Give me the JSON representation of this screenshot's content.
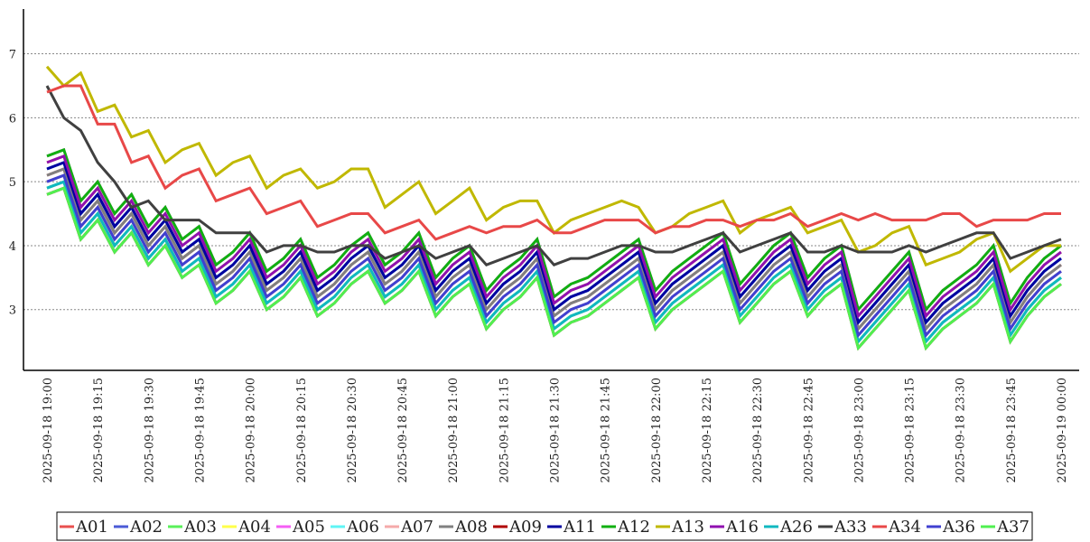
{
  "chart_data": {
    "type": "line",
    "categories": [
      "2025-09-18 19:00",
      null,
      null,
      "2025-09-18 19:15",
      null,
      null,
      "2025-09-18 19:30",
      null,
      null,
      "2025-09-18 19:45",
      null,
      null,
      "2025-09-18 20:00",
      null,
      null,
      "2025-09-18 20:15",
      null,
      null,
      "2025-09-18 20:30",
      null,
      null,
      "2025-09-18 20:45",
      null,
      null,
      "2025-09-18 21:00",
      null,
      null,
      "2025-09-18 21:15",
      null,
      null,
      "2025-09-18 21:30",
      null,
      null,
      "2025-09-18 21:45",
      null,
      null,
      "2025-09-18 22:00",
      null,
      null,
      "2025-09-18 22:15",
      null,
      null,
      "2025-09-18 22:30",
      null,
      null,
      "2025-09-18 22:45",
      null,
      null,
      "2025-09-18 23:00",
      null,
      null,
      "2025-09-18 23:15",
      null,
      null,
      "2025-09-18 23:30",
      null,
      null,
      "2025-09-18 23:45",
      null,
      null,
      "2025-09-19 00:00"
    ],
    "ylim": [
      2.05,
      7.7
    ],
    "yticks": [
      3,
      4,
      5,
      6,
      7
    ],
    "grid": true,
    "series": [
      {
        "name": "A01",
        "color": "#e8504f",
        "values": [
          5.1,
          5.2,
          4.4,
          4.7,
          4.2,
          4.5,
          4.0,
          4.3,
          3.8,
          4.0,
          3.4,
          3.6,
          3.9,
          3.3,
          3.5,
          3.8,
          3.2,
          3.4,
          3.7,
          3.9,
          3.4,
          3.6,
          3.9,
          3.2,
          3.5,
          3.7,
          3.0,
          3.3,
          3.5,
          3.8,
          2.9,
          3.1,
          3.2,
          3.4,
          3.6,
          3.8,
          3.0,
          3.3,
          3.5,
          3.7,
          3.9,
          3.1,
          3.4,
          3.7,
          3.9,
          3.2,
          3.5,
          3.7,
          2.7,
          3.0,
          3.3,
          3.6,
          2.7,
          3.0,
          3.2,
          3.4,
          3.7,
          2.8,
          3.2,
          3.5,
          3.7
        ]
      },
      {
        "name": "A02",
        "color": "#4b5bd6",
        "values": [
          5.2,
          5.3,
          4.5,
          4.8,
          4.3,
          4.6,
          4.1,
          4.4,
          3.9,
          4.1,
          3.5,
          3.7,
          4.0,
          3.4,
          3.6,
          3.9,
          3.3,
          3.5,
          3.8,
          4.0,
          3.5,
          3.7,
          4.0,
          3.3,
          3.6,
          3.8,
          3.1,
          3.4,
          3.6,
          3.9,
          3.0,
          3.2,
          3.3,
          3.5,
          3.7,
          3.9,
          3.1,
          3.4,
          3.6,
          3.8,
          4.0,
          3.2,
          3.5,
          3.8,
          4.0,
          3.3,
          3.6,
          3.8,
          2.8,
          3.1,
          3.4,
          3.7,
          2.8,
          3.1,
          3.3,
          3.5,
          3.8,
          2.9,
          3.3,
          3.6,
          3.8
        ]
      },
      {
        "name": "A03",
        "color": "#5af05a",
        "values": [
          4.9,
          5.0,
          4.2,
          4.5,
          4.0,
          4.3,
          3.8,
          4.1,
          3.6,
          3.8,
          3.2,
          3.4,
          3.7,
          3.1,
          3.3,
          3.6,
          3.0,
          3.2,
          3.5,
          3.7,
          3.2,
          3.4,
          3.7,
          3.0,
          3.3,
          3.5,
          2.8,
          3.1,
          3.3,
          3.6,
          2.7,
          2.9,
          3.0,
          3.2,
          3.4,
          3.6,
          2.8,
          3.1,
          3.3,
          3.5,
          3.7,
          2.9,
          3.2,
          3.5,
          3.7,
          3.0,
          3.3,
          3.5,
          2.5,
          2.8,
          3.1,
          3.4,
          2.5,
          2.8,
          3.0,
          3.2,
          3.5,
          2.6,
          3.0,
          3.3,
          3.5
        ]
      },
      {
        "name": "A04",
        "color": "#ffff4a",
        "values": [
          5.3,
          5.4,
          4.6,
          4.9,
          4.4,
          4.7,
          4.2,
          4.5,
          4.0,
          4.2,
          3.6,
          3.8,
          4.1,
          3.5,
          3.7,
          4.0,
          3.4,
          3.6,
          3.9,
          4.1,
          3.6,
          3.8,
          4.1,
          3.4,
          3.7,
          3.9,
          3.2,
          3.5,
          3.7,
          4.0,
          3.1,
          3.3,
          3.4,
          3.6,
          3.8,
          4.0,
          3.2,
          3.5,
          3.7,
          3.9,
          4.1,
          3.3,
          3.6,
          3.9,
          4.1,
          3.4,
          3.7,
          3.9,
          2.9,
          3.2,
          3.5,
          3.8,
          2.9,
          3.2,
          3.4,
          3.6,
          3.9,
          3.0,
          3.4,
          3.7,
          3.9
        ]
      },
      {
        "name": "A05",
        "color": "#f55ef5",
        "values": [
          5.4,
          5.5,
          4.7,
          5.0,
          4.5,
          4.8,
          4.3,
          4.6,
          4.1,
          4.3,
          3.7,
          3.9,
          4.2,
          3.6,
          3.8,
          4.1,
          3.5,
          3.7,
          4.0,
          4.2,
          3.7,
          3.9,
          4.2,
          3.5,
          3.8,
          4.0,
          3.3,
          3.6,
          3.8,
          4.1,
          3.2,
          3.4,
          3.5,
          3.7,
          3.9,
          4.1,
          3.3,
          3.6,
          3.8,
          4.0,
          4.2,
          3.4,
          3.7,
          4.0,
          4.2,
          3.5,
          3.8,
          4.0,
          3.0,
          3.3,
          3.6,
          3.9,
          3.0,
          3.3,
          3.5,
          3.7,
          4.0,
          3.1,
          3.5,
          3.8,
          4.0
        ]
      },
      {
        "name": "A06",
        "color": "#5ff5f5",
        "values": [
          5.2,
          5.3,
          4.5,
          4.8,
          4.3,
          4.6,
          4.1,
          4.4,
          3.9,
          4.1,
          3.5,
          3.7,
          4.0,
          3.4,
          3.6,
          3.9,
          3.3,
          3.5,
          3.8,
          4.0,
          3.5,
          3.7,
          4.0,
          3.3,
          3.6,
          3.8,
          3.1,
          3.4,
          3.6,
          3.9,
          3.0,
          3.2,
          3.3,
          3.5,
          3.7,
          3.9,
          3.1,
          3.4,
          3.6,
          3.8,
          4.0,
          3.2,
          3.5,
          3.8,
          4.0,
          3.3,
          3.6,
          3.8,
          2.8,
          3.1,
          3.4,
          3.7,
          2.8,
          3.1,
          3.3,
          3.5,
          3.8,
          2.9,
          3.3,
          3.6,
          3.8
        ]
      },
      {
        "name": "A07",
        "color": "#f5aaaa",
        "values": [
          5.0,
          5.1,
          4.3,
          4.6,
          4.1,
          4.4,
          3.9,
          4.2,
          3.7,
          3.9,
          3.3,
          3.5,
          3.8,
          3.2,
          3.4,
          3.7,
          3.1,
          3.3,
          3.6,
          3.8,
          3.3,
          3.5,
          3.8,
          3.1,
          3.4,
          3.6,
          2.9,
          3.2,
          3.4,
          3.7,
          2.8,
          3.0,
          3.1,
          3.3,
          3.5,
          3.7,
          2.9,
          3.2,
          3.4,
          3.6,
          3.8,
          3.0,
          3.3,
          3.6,
          3.8,
          3.1,
          3.4,
          3.6,
          2.6,
          2.9,
          3.2,
          3.5,
          2.6,
          2.9,
          3.1,
          3.3,
          3.6,
          2.7,
          3.1,
          3.4,
          3.6
        ]
      },
      {
        "name": "A08",
        "color": "#808080",
        "values": [
          5.1,
          5.2,
          4.4,
          4.7,
          4.2,
          4.5,
          4.0,
          4.3,
          3.8,
          4.0,
          3.4,
          3.6,
          3.9,
          3.3,
          3.5,
          3.8,
          3.2,
          3.4,
          3.7,
          3.9,
          3.4,
          3.6,
          3.9,
          3.2,
          3.5,
          3.7,
          3.0,
          3.3,
          3.5,
          3.8,
          2.9,
          3.1,
          3.2,
          3.4,
          3.6,
          3.8,
          3.0,
          3.3,
          3.5,
          3.7,
          3.9,
          3.1,
          3.4,
          3.7,
          3.9,
          3.2,
          3.5,
          3.7,
          2.7,
          3.0,
          3.3,
          3.6,
          2.7,
          3.0,
          3.2,
          3.4,
          3.7,
          2.8,
          3.2,
          3.5,
          3.7
        ]
      },
      {
        "name": "A09",
        "color": "#b00000",
        "values": [
          4.8,
          4.9,
          4.1,
          4.4,
          3.9,
          4.2,
          3.7,
          4.0,
          3.5,
          3.7,
          3.1,
          3.3,
          3.6,
          3.0,
          3.2,
          3.5,
          2.9,
          3.1,
          3.4,
          3.6,
          3.1,
          3.3,
          3.6,
          2.9,
          3.2,
          3.4,
          2.7,
          3.0,
          3.2,
          3.5,
          2.6,
          2.8,
          2.9,
          3.1,
          3.3,
          3.5,
          2.7,
          3.0,
          3.2,
          3.4,
          3.6,
          2.8,
          3.1,
          3.4,
          3.6,
          2.9,
          3.2,
          3.4,
          2.4,
          2.7,
          3.0,
          3.3,
          2.4,
          2.7,
          2.9,
          3.1,
          3.4,
          2.5,
          2.9,
          3.2,
          3.4
        ]
      },
      {
        "name": "A11",
        "color": "#0000a0",
        "values": [
          5.2,
          5.3,
          4.5,
          4.8,
          4.3,
          4.6,
          4.1,
          4.4,
          3.9,
          4.1,
          3.5,
          3.7,
          4.0,
          3.4,
          3.6,
          3.9,
          3.3,
          3.5,
          3.8,
          4.0,
          3.5,
          3.7,
          4.0,
          3.3,
          3.6,
          3.8,
          3.1,
          3.4,
          3.6,
          3.9,
          3.0,
          3.2,
          3.3,
          3.5,
          3.7,
          3.9,
          3.1,
          3.4,
          3.6,
          3.8,
          4.0,
          3.2,
          3.5,
          3.8,
          4.0,
          3.3,
          3.6,
          3.8,
          2.8,
          3.1,
          3.4,
          3.7,
          2.8,
          3.1,
          3.3,
          3.5,
          3.8,
          2.9,
          3.3,
          3.6,
          3.8
        ]
      },
      {
        "name": "A12",
        "color": "#10b010",
        "values": [
          5.4,
          5.5,
          4.7,
          5.0,
          4.5,
          4.8,
          4.3,
          4.6,
          4.1,
          4.3,
          3.7,
          3.9,
          4.2,
          3.6,
          3.8,
          4.1,
          3.5,
          3.7,
          4.0,
          4.2,
          3.7,
          3.9,
          4.2,
          3.5,
          3.8,
          4.0,
          3.3,
          3.6,
          3.8,
          4.1,
          3.2,
          3.4,
          3.5,
          3.7,
          3.9,
          4.1,
          3.3,
          3.6,
          3.8,
          4.0,
          4.2,
          3.4,
          3.7,
          4.0,
          4.2,
          3.5,
          3.8,
          4.0,
          3.0,
          3.3,
          3.6,
          3.9,
          3.0,
          3.3,
          3.5,
          3.7,
          4.0,
          3.1,
          3.5,
          3.8,
          4.0
        ]
      },
      {
        "name": "A13",
        "color": "#c0b800",
        "values": [
          6.8,
          6.5,
          6.7,
          6.1,
          6.2,
          5.7,
          5.8,
          5.3,
          5.5,
          5.6,
          5.1,
          5.3,
          5.4,
          4.9,
          5.1,
          5.2,
          4.9,
          5.0,
          5.2,
          5.2,
          4.6,
          4.8,
          5.0,
          4.5,
          4.7,
          4.9,
          4.4,
          4.6,
          4.7,
          4.7,
          4.2,
          4.4,
          4.5,
          4.6,
          4.7,
          4.6,
          4.2,
          4.3,
          4.5,
          4.6,
          4.7,
          4.2,
          4.4,
          4.5,
          4.6,
          4.2,
          4.3,
          4.4,
          3.9,
          4.0,
          4.2,
          4.3,
          3.7,
          3.8,
          3.9,
          4.1,
          4.2,
          3.6,
          3.8,
          4.0,
          4.0
        ]
      },
      {
        "name": "A16",
        "color": "#9010b0",
        "values": [
          5.3,
          5.4,
          4.6,
          4.9,
          4.4,
          4.7,
          4.2,
          4.5,
          4.0,
          4.2,
          3.6,
          3.8,
          4.1,
          3.5,
          3.7,
          4.0,
          3.4,
          3.6,
          3.9,
          4.1,
          3.6,
          3.8,
          4.1,
          3.4,
          3.7,
          3.9,
          3.2,
          3.5,
          3.7,
          4.0,
          3.1,
          3.3,
          3.4,
          3.6,
          3.8,
          4.0,
          3.2,
          3.5,
          3.7,
          3.9,
          4.1,
          3.3,
          3.6,
          3.9,
          4.1,
          3.4,
          3.7,
          3.9,
          2.9,
          3.2,
          3.5,
          3.8,
          2.9,
          3.2,
          3.4,
          3.6,
          3.9,
          3.0,
          3.4,
          3.7,
          3.9
        ]
      },
      {
        "name": "A26",
        "color": "#10b8c0",
        "values": [
          4.9,
          5.0,
          4.2,
          4.5,
          4.0,
          4.3,
          3.8,
          4.1,
          3.6,
          3.8,
          3.2,
          3.4,
          3.7,
          3.1,
          3.3,
          3.6,
          3.0,
          3.2,
          3.5,
          3.7,
          3.2,
          3.4,
          3.7,
          3.0,
          3.3,
          3.5,
          2.8,
          3.1,
          3.3,
          3.6,
          2.7,
          2.9,
          3.0,
          3.2,
          3.4,
          3.6,
          2.8,
          3.1,
          3.3,
          3.5,
          3.7,
          2.9,
          3.2,
          3.5,
          3.7,
          3.0,
          3.3,
          3.5,
          2.5,
          2.8,
          3.1,
          3.4,
          2.5,
          2.8,
          3.0,
          3.2,
          3.5,
          2.6,
          3.0,
          3.3,
          3.5
        ]
      },
      {
        "name": "A33",
        "color": "#404040",
        "values": [
          6.5,
          6.0,
          5.8,
          5.3,
          5.0,
          4.6,
          4.7,
          4.4,
          4.4,
          4.4,
          4.2,
          4.2,
          4.2,
          3.9,
          4.0,
          4.0,
          3.9,
          3.9,
          4.0,
          4.0,
          3.8,
          3.9,
          4.0,
          3.8,
          3.9,
          4.0,
          3.7,
          3.8,
          3.9,
          4.0,
          3.7,
          3.8,
          3.8,
          3.9,
          4.0,
          4.0,
          3.9,
          3.9,
          4.0,
          4.1,
          4.2,
          3.9,
          4.0,
          4.1,
          4.2,
          3.9,
          3.9,
          4.0,
          3.9,
          3.9,
          3.9,
          4.0,
          3.9,
          4.0,
          4.1,
          4.2,
          4.2,
          3.8,
          3.9,
          4.0,
          4.1
        ]
      },
      {
        "name": "A34",
        "color": "#e84848",
        "values": [
          6.4,
          6.5,
          6.5,
          5.9,
          5.9,
          5.3,
          5.4,
          4.9,
          5.1,
          5.2,
          4.7,
          4.8,
          4.9,
          4.5,
          4.6,
          4.7,
          4.3,
          4.4,
          4.5,
          4.5,
          4.2,
          4.3,
          4.4,
          4.1,
          4.2,
          4.3,
          4.2,
          4.3,
          4.3,
          4.4,
          4.2,
          4.2,
          4.3,
          4.4,
          4.4,
          4.4,
          4.2,
          4.3,
          4.3,
          4.4,
          4.4,
          4.3,
          4.4,
          4.4,
          4.5,
          4.3,
          4.4,
          4.5,
          4.4,
          4.5,
          4.4,
          4.4,
          4.4,
          4.5,
          4.5,
          4.3,
          4.4,
          4.4,
          4.4,
          4.5,
          4.5
        ]
      },
      {
        "name": "A36",
        "color": "#4040d0",
        "values": [
          5.0,
          5.1,
          4.3,
          4.6,
          4.1,
          4.4,
          3.9,
          4.2,
          3.7,
          3.9,
          3.3,
          3.5,
          3.8,
          3.2,
          3.4,
          3.7,
          3.1,
          3.3,
          3.6,
          3.8,
          3.3,
          3.5,
          3.8,
          3.1,
          3.4,
          3.6,
          2.9,
          3.2,
          3.4,
          3.7,
          2.8,
          3.0,
          3.1,
          3.3,
          3.5,
          3.7,
          2.9,
          3.2,
          3.4,
          3.6,
          3.8,
          3.0,
          3.3,
          3.6,
          3.8,
          3.1,
          3.4,
          3.6,
          2.6,
          2.9,
          3.2,
          3.5,
          2.6,
          2.9,
          3.1,
          3.3,
          3.6,
          2.7,
          3.1,
          3.4,
          3.6
        ]
      },
      {
        "name": "A37",
        "color": "#50f050",
        "values": [
          4.8,
          4.9,
          4.1,
          4.4,
          3.9,
          4.2,
          3.7,
          4.0,
          3.5,
          3.7,
          3.1,
          3.3,
          3.6,
          3.0,
          3.2,
          3.5,
          2.9,
          3.1,
          3.4,
          3.6,
          3.1,
          3.3,
          3.6,
          2.9,
          3.2,
          3.4,
          2.7,
          3.0,
          3.2,
          3.5,
          2.6,
          2.8,
          2.9,
          3.1,
          3.3,
          3.5,
          2.7,
          3.0,
          3.2,
          3.4,
          3.6,
          2.8,
          3.1,
          3.4,
          3.6,
          2.9,
          3.2,
          3.4,
          2.4,
          2.7,
          3.0,
          3.3,
          2.4,
          2.7,
          2.9,
          3.1,
          3.4,
          2.5,
          2.9,
          3.2,
          3.4
        ]
      }
    ]
  }
}
